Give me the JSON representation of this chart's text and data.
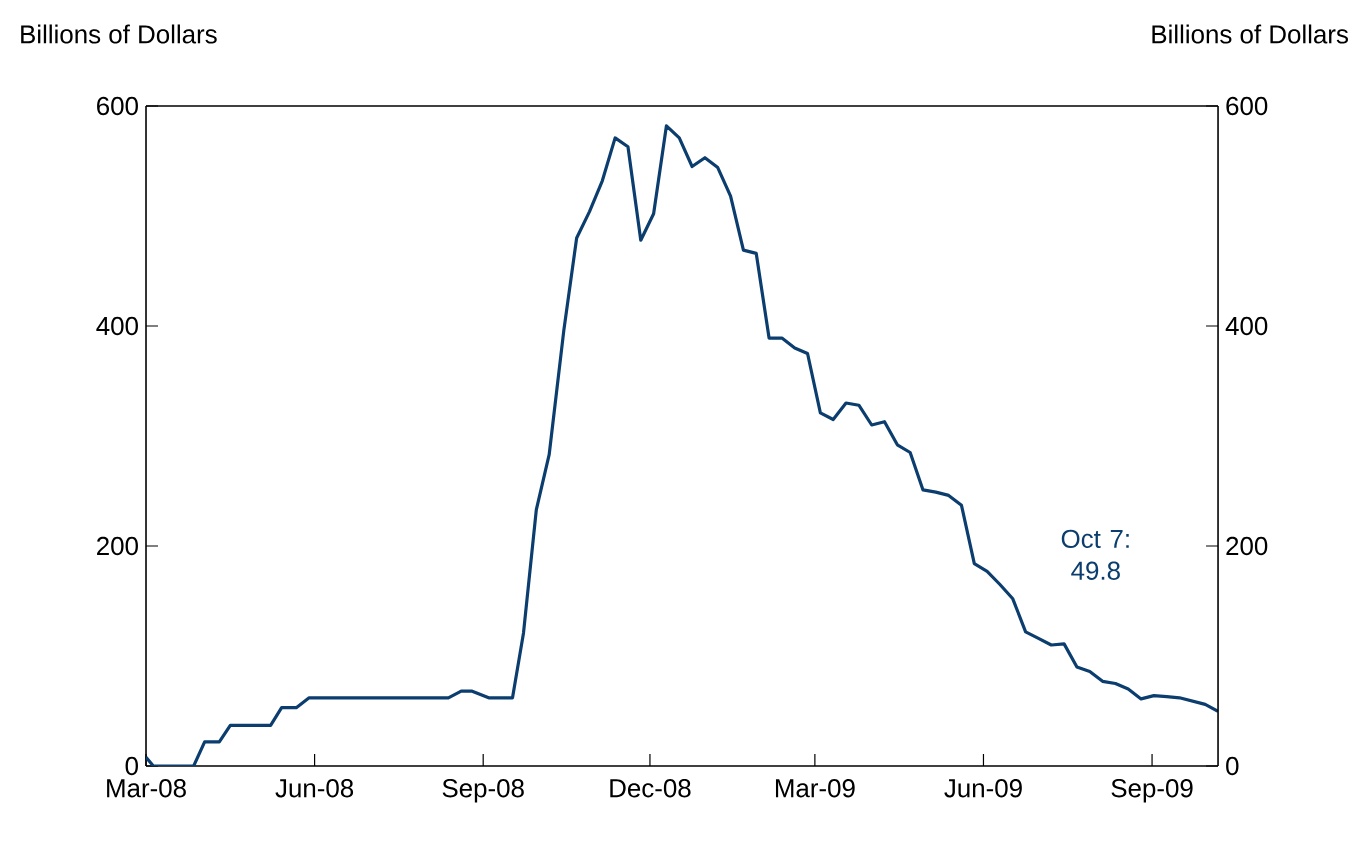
{
  "chart_data": {
    "type": "line",
    "ylabel": "Billions of Dollars",
    "y2label": "Billions of Dollars",
    "xlim": [
      "2008-03-01",
      "2009-10-07"
    ],
    "xticks": [
      {
        "value": "2008-03-01",
        "label": "Mar-08"
      },
      {
        "value": "2008-06-01",
        "label": "Jun-08"
      },
      {
        "value": "2008-09-01",
        "label": "Sep-08"
      },
      {
        "value": "2008-12-01",
        "label": "Dec-08"
      },
      {
        "value": "2009-03-01",
        "label": "Mar-09"
      },
      {
        "value": "2009-06-01",
        "label": "Jun-09"
      },
      {
        "value": "2009-09-01",
        "label": "Sep-09"
      }
    ],
    "ylim": [
      0,
      600
    ],
    "yticks": [
      0,
      200,
      400,
      600
    ],
    "y2lim": [
      0,
      600
    ],
    "y2ticks": [
      0,
      200,
      400,
      600
    ],
    "x": [
      "2008-03-01",
      "2008-03-05",
      "2008-03-27",
      "2008-04-02",
      "2008-04-10",
      "2008-04-16",
      "2008-05-08",
      "2008-05-14",
      "2008-05-22",
      "2008-05-29",
      "2008-08-13",
      "2008-08-20",
      "2008-08-26",
      "2008-09-04",
      "2008-09-17",
      "2008-09-23",
      "2008-09-30",
      "2008-10-07",
      "2008-10-15",
      "2008-10-22",
      "2008-10-29",
      "2008-11-05",
      "2008-11-12",
      "2008-11-19",
      "2008-11-26",
      "2008-12-03",
      "2008-12-10",
      "2008-12-17",
      "2008-12-24",
      "2008-12-31",
      "2009-01-07",
      "2009-01-14",
      "2009-01-21",
      "2009-01-28",
      "2009-02-04",
      "2009-02-11",
      "2009-02-18",
      "2009-02-25",
      "2009-03-04",
      "2009-03-11",
      "2009-03-18",
      "2009-03-25",
      "2009-04-01",
      "2009-04-08",
      "2009-04-15",
      "2009-04-22",
      "2009-04-29",
      "2009-05-06",
      "2009-05-13",
      "2009-05-20",
      "2009-05-27",
      "2009-06-03",
      "2009-06-10",
      "2009-06-17",
      "2009-06-24",
      "2009-07-01",
      "2009-07-08",
      "2009-07-15",
      "2009-07-22",
      "2009-07-29",
      "2009-08-05",
      "2009-08-12",
      "2009-08-19",
      "2009-08-26",
      "2009-09-02",
      "2009-09-09",
      "2009-09-16",
      "2009-09-23",
      "2009-09-30",
      "2009-10-07"
    ],
    "series": [
      {
        "color": "#0b3d6e",
        "values": [
          8,
          0,
          0,
          22,
          22,
          37,
          37,
          53,
          53,
          62,
          62,
          68,
          68,
          62,
          62,
          121,
          233,
          283,
          396,
          480,
          504,
          532,
          571,
          563,
          478,
          502,
          582,
          571,
          545,
          553,
          544,
          518,
          469,
          466,
          389,
          389,
          380,
          375,
          321,
          315,
          330,
          328,
          310,
          313,
          292,
          285,
          251,
          249,
          246,
          237,
          184,
          177,
          165,
          152,
          122,
          116,
          110,
          111,
          90,
          86,
          77,
          75,
          70,
          61,
          64,
          63,
          62,
          59,
          56,
          49.8
        ]
      }
    ],
    "annotations": [
      "Oct 7: 49.8"
    ]
  }
}
